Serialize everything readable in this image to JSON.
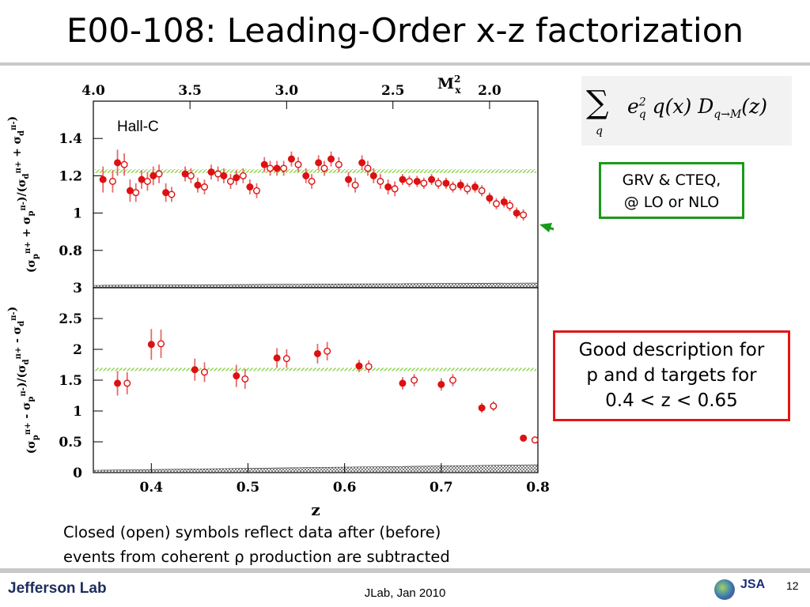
{
  "slide": {
    "title": "E00-108: Leading-Order x-z factorization",
    "footer_logo": "Jefferson Lab",
    "footer_center": "JLab, Jan 2010",
    "page_number": "12",
    "footer_mark": "JSA"
  },
  "formula": {
    "sum_symbol": "∑",
    "sum_index": "q",
    "e": "e",
    "e_sub": "q",
    "e_sup": "2",
    "body": "q(x) D",
    "D_sub": "q→M",
    "arg": "(z)"
  },
  "callouts": {
    "models": [
      "GRV & CTEQ,",
      "@ LO or NLO"
    ],
    "description": [
      "Good description for",
      "p and d targets for",
      "0.4 < z < 0.65"
    ]
  },
  "note": [
    "Closed (open) symbols reflect data after (before)",
    "events from coherent ρ production are subtracted"
  ],
  "colors": {
    "data": "#dd1111",
    "error": "#e66a6a",
    "model_band": "#8bd44a",
    "green_box": "#1a9a1a",
    "red_box": "#e01818"
  },
  "chart_data": {
    "type": "scatter",
    "xlabel": "z",
    "xlim": [
      0.34,
      0.8
    ],
    "x_ticks": [
      "0.4",
      "0.5",
      "0.6",
      "0.7",
      "0.8"
    ],
    "top_axis": {
      "label": "M",
      "label_sup": "2",
      "label_sub": "x",
      "ticks": [
        "4.0",
        "3.5",
        "3.0",
        "2.5",
        "2.0"
      ],
      "tick_z": [
        0.34,
        0.44,
        0.54,
        0.65,
        0.75
      ]
    },
    "panels": [
      {
        "name": "sum",
        "annotation": "Hall-C",
        "ylabel": "(σp^π+ + σp^π-)/(σd^π+ + σd^π-)",
        "ylabel_parts": [
          "(σ",
          "p",
          "π+",
          " + σ",
          "p",
          "π-",
          ")/(σ",
          "d",
          "π+",
          " + σ",
          "d",
          "π-",
          ")"
        ],
        "ylim": [
          0.6,
          1.6
        ],
        "y_ticks": [
          "0.8",
          "1",
          "1.2",
          "1.4"
        ],
        "model_band": {
          "y_low": 1.215,
          "y_high": 1.235
        },
        "closed": [
          {
            "x": 0.35,
            "y": 1.18,
            "err": 0.07
          },
          {
            "x": 0.365,
            "y": 1.27,
            "err": 0.07
          },
          {
            "x": 0.378,
            "y": 1.12,
            "err": 0.06
          },
          {
            "x": 0.39,
            "y": 1.18,
            "err": 0.05
          },
          {
            "x": 0.402,
            "y": 1.2,
            "err": 0.05
          },
          {
            "x": 0.415,
            "y": 1.11,
            "err": 0.05
          },
          {
            "x": 0.435,
            "y": 1.21,
            "err": 0.04
          },
          {
            "x": 0.448,
            "y": 1.15,
            "err": 0.04
          },
          {
            "x": 0.462,
            "y": 1.22,
            "err": 0.04
          },
          {
            "x": 0.475,
            "y": 1.2,
            "err": 0.04
          },
          {
            "x": 0.488,
            "y": 1.19,
            "err": 0.04
          },
          {
            "x": 0.502,
            "y": 1.14,
            "err": 0.04
          },
          {
            "x": 0.517,
            "y": 1.26,
            "err": 0.04
          },
          {
            "x": 0.53,
            "y": 1.24,
            "err": 0.04
          },
          {
            "x": 0.545,
            "y": 1.29,
            "err": 0.04
          },
          {
            "x": 0.56,
            "y": 1.2,
            "err": 0.04
          },
          {
            "x": 0.573,
            "y": 1.27,
            "err": 0.04
          },
          {
            "x": 0.586,
            "y": 1.29,
            "err": 0.04
          },
          {
            "x": 0.604,
            "y": 1.18,
            "err": 0.04
          },
          {
            "x": 0.618,
            "y": 1.27,
            "err": 0.04
          },
          {
            "x": 0.63,
            "y": 1.2,
            "err": 0.04
          },
          {
            "x": 0.645,
            "y": 1.14,
            "err": 0.04
          },
          {
            "x": 0.66,
            "y": 1.18,
            "err": 0.03
          },
          {
            "x": 0.675,
            "y": 1.17,
            "err": 0.03
          },
          {
            "x": 0.69,
            "y": 1.18,
            "err": 0.03
          },
          {
            "x": 0.705,
            "y": 1.16,
            "err": 0.03
          },
          {
            "x": 0.72,
            "y": 1.15,
            "err": 0.03
          },
          {
            "x": 0.735,
            "y": 1.14,
            "err": 0.03
          },
          {
            "x": 0.75,
            "y": 1.08,
            "err": 0.03
          },
          {
            "x": 0.765,
            "y": 1.06,
            "err": 0.03
          },
          {
            "x": 0.778,
            "y": 1.0,
            "err": 0.03
          }
        ],
        "open": [
          {
            "x": 0.36,
            "y": 1.17,
            "err": 0.06
          },
          {
            "x": 0.372,
            "y": 1.26,
            "err": 0.06
          },
          {
            "x": 0.384,
            "y": 1.11,
            "err": 0.05
          },
          {
            "x": 0.396,
            "y": 1.17,
            "err": 0.05
          },
          {
            "x": 0.408,
            "y": 1.21,
            "err": 0.05
          },
          {
            "x": 0.421,
            "y": 1.1,
            "err": 0.04
          },
          {
            "x": 0.441,
            "y": 1.2,
            "err": 0.04
          },
          {
            "x": 0.455,
            "y": 1.14,
            "err": 0.04
          },
          {
            "x": 0.469,
            "y": 1.21,
            "err": 0.04
          },
          {
            "x": 0.482,
            "y": 1.17,
            "err": 0.04
          },
          {
            "x": 0.495,
            "y": 1.2,
            "err": 0.04
          },
          {
            "x": 0.509,
            "y": 1.12,
            "err": 0.04
          },
          {
            "x": 0.523,
            "y": 1.24,
            "err": 0.04
          },
          {
            "x": 0.537,
            "y": 1.24,
            "err": 0.04
          },
          {
            "x": 0.552,
            "y": 1.26,
            "err": 0.04
          },
          {
            "x": 0.566,
            "y": 1.17,
            "err": 0.04
          },
          {
            "x": 0.579,
            "y": 1.24,
            "err": 0.04
          },
          {
            "x": 0.594,
            "y": 1.26,
            "err": 0.04
          },
          {
            "x": 0.611,
            "y": 1.15,
            "err": 0.04
          },
          {
            "x": 0.624,
            "y": 1.24,
            "err": 0.04
          },
          {
            "x": 0.637,
            "y": 1.17,
            "err": 0.04
          },
          {
            "x": 0.652,
            "y": 1.13,
            "err": 0.04
          },
          {
            "x": 0.667,
            "y": 1.17,
            "err": 0.03
          },
          {
            "x": 0.682,
            "y": 1.16,
            "err": 0.03
          },
          {
            "x": 0.697,
            "y": 1.16,
            "err": 0.03
          },
          {
            "x": 0.712,
            "y": 1.14,
            "err": 0.03
          },
          {
            "x": 0.727,
            "y": 1.13,
            "err": 0.03
          },
          {
            "x": 0.742,
            "y": 1.12,
            "err": 0.03
          },
          {
            "x": 0.757,
            "y": 1.05,
            "err": 0.03
          },
          {
            "x": 0.771,
            "y": 1.04,
            "err": 0.03
          },
          {
            "x": 0.785,
            "y": 0.99,
            "err": 0.03
          }
        ]
      },
      {
        "name": "difference",
        "ylabel": "(σp^π+ - σp^π-)/(σd^π+ - σd^π-)",
        "ylabel_parts": [
          "(σ",
          "p",
          "π+",
          " - σ",
          "p",
          "π-",
          ")/(σ",
          "d",
          "π+",
          " - σ",
          "d",
          "π-",
          ")"
        ],
        "ylim": [
          0,
          3
        ],
        "y_ticks": [
          "0",
          "0.5",
          "1",
          "1.5",
          "2",
          "2.5",
          "3"
        ],
        "model_band": {
          "y_low": 1.66,
          "y_high": 1.7
        },
        "closed": [
          {
            "x": 0.365,
            "y": 1.45,
            "err": 0.2
          },
          {
            "x": 0.4,
            "y": 2.08,
            "err": 0.25
          },
          {
            "x": 0.445,
            "y": 1.67,
            "err": 0.18
          },
          {
            "x": 0.488,
            "y": 1.57,
            "err": 0.18
          },
          {
            "x": 0.53,
            "y": 1.86,
            "err": 0.16
          },
          {
            "x": 0.572,
            "y": 1.93,
            "err": 0.16
          },
          {
            "x": 0.615,
            "y": 1.73,
            "err": 0.1
          },
          {
            "x": 0.66,
            "y": 1.45,
            "err": 0.1
          },
          {
            "x": 0.7,
            "y": 1.43,
            "err": 0.1
          },
          {
            "x": 0.742,
            "y": 1.05,
            "err": 0.08
          },
          {
            "x": 0.785,
            "y": 0.56,
            "err": 0.05
          }
        ],
        "open": [
          {
            "x": 0.375,
            "y": 1.45,
            "err": 0.18
          },
          {
            "x": 0.41,
            "y": 2.09,
            "err": 0.23
          },
          {
            "x": 0.455,
            "y": 1.63,
            "err": 0.16
          },
          {
            "x": 0.497,
            "y": 1.52,
            "err": 0.16
          },
          {
            "x": 0.54,
            "y": 1.85,
            "err": 0.15
          },
          {
            "x": 0.582,
            "y": 1.97,
            "err": 0.15
          },
          {
            "x": 0.625,
            "y": 1.72,
            "err": 0.1
          },
          {
            "x": 0.672,
            "y": 1.5,
            "err": 0.1
          },
          {
            "x": 0.712,
            "y": 1.5,
            "err": 0.1
          },
          {
            "x": 0.754,
            "y": 1.08,
            "err": 0.08
          },
          {
            "x": 0.797,
            "y": 0.53,
            "err": 0.05
          }
        ]
      }
    ]
  }
}
